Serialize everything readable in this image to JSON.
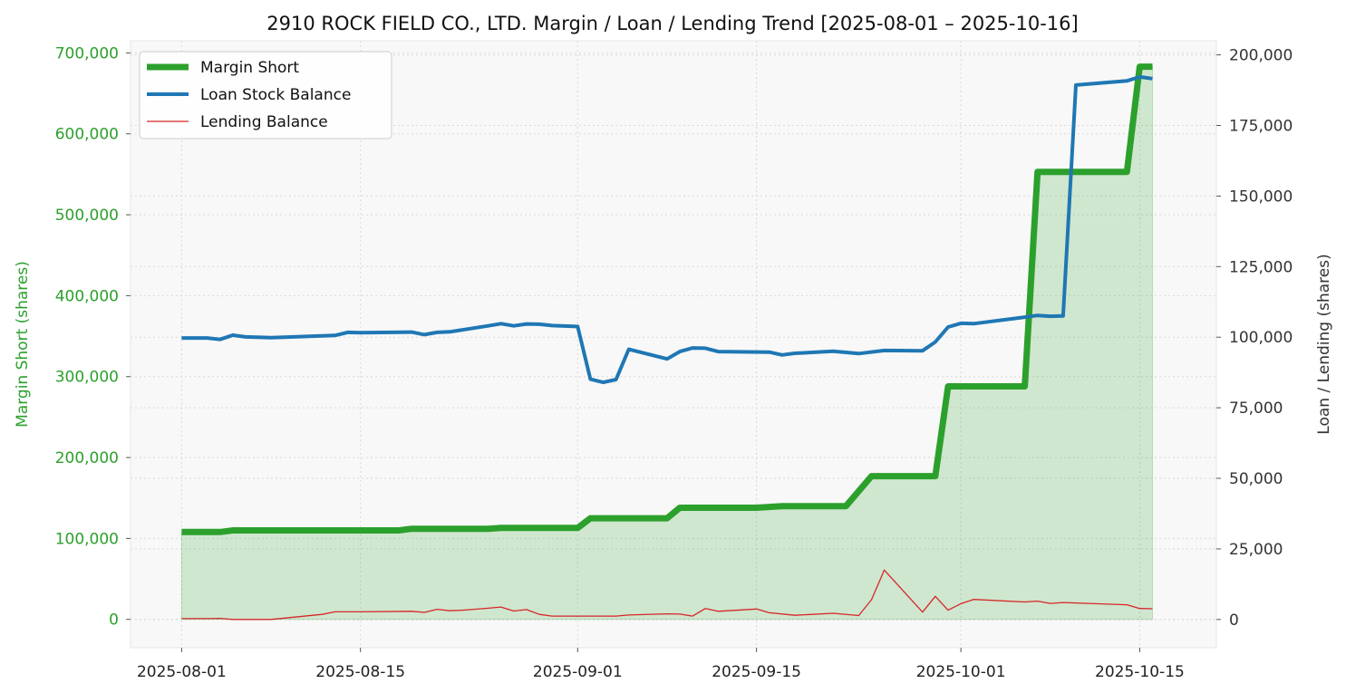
{
  "chart_data": {
    "type": "line",
    "title": "2910 ROCK FIELD CO., LTD. Margin / Loan / Lending Trend [2025-08-01 – 2025-10-16]",
    "ylabel_left": "Margin Short (shares)",
    "ylabel_right": "Loan / Lending (shares)",
    "xlabel": "",
    "grid": true,
    "legend_position": "top-left",
    "ylim_left": [
      -35000,
      715000
    ],
    "ylim_right": [
      -10000,
      205000
    ],
    "xlim": [
      "2025-07-28",
      "2025-10-21"
    ],
    "x_ticks": [
      "2025-08-01",
      "2025-08-15",
      "2025-09-01",
      "2025-09-15",
      "2025-10-01",
      "2025-10-15"
    ],
    "y_ticks_left": [
      0,
      100000,
      200000,
      300000,
      400000,
      500000,
      600000,
      700000
    ],
    "y_ticks_right": [
      0,
      25000,
      50000,
      75000,
      100000,
      125000,
      150000,
      175000,
      200000
    ],
    "series": [
      {
        "name": "Margin Short",
        "axis": "left",
        "color": "#2ca02c",
        "fill": true,
        "points": [
          [
            "2025-08-01",
            108000
          ],
          [
            "2025-08-04",
            108000
          ],
          [
            "2025-08-05",
            110000
          ],
          [
            "2025-08-08",
            110000
          ],
          [
            "2025-08-13",
            110000
          ],
          [
            "2025-08-18",
            110000
          ],
          [
            "2025-08-19",
            112000
          ],
          [
            "2025-08-25",
            112000
          ],
          [
            "2025-08-26",
            113000
          ],
          [
            "2025-08-29",
            113000
          ],
          [
            "2025-09-01",
            113000
          ],
          [
            "2025-09-02",
            125000
          ],
          [
            "2025-09-08",
            125000
          ],
          [
            "2025-09-09",
            138000
          ],
          [
            "2025-09-15",
            138000
          ],
          [
            "2025-09-17",
            140000
          ],
          [
            "2025-09-22",
            140000
          ],
          [
            "2025-09-24",
            177000
          ],
          [
            "2025-09-29",
            177000
          ],
          [
            "2025-09-30",
            288000
          ],
          [
            "2025-10-06",
            288000
          ],
          [
            "2025-10-07",
            553000
          ],
          [
            "2025-10-14",
            553000
          ],
          [
            "2025-10-15",
            683000
          ],
          [
            "2025-10-16",
            683000
          ]
        ]
      },
      {
        "name": "Loan Stock Balance",
        "axis": "right",
        "color": "#1f77b4",
        "points": [
          [
            "2025-08-01",
            99700
          ],
          [
            "2025-08-03",
            99700
          ],
          [
            "2025-08-04",
            99200
          ],
          [
            "2025-08-05",
            100700
          ],
          [
            "2025-08-06",
            100100
          ],
          [
            "2025-08-08",
            99800
          ],
          [
            "2025-08-12",
            100500
          ],
          [
            "2025-08-13",
            100600
          ],
          [
            "2025-08-14",
            101700
          ],
          [
            "2025-08-15",
            101600
          ],
          [
            "2025-08-19",
            101800
          ],
          [
            "2025-08-20",
            100900
          ],
          [
            "2025-08-21",
            101700
          ],
          [
            "2025-08-22",
            101900
          ],
          [
            "2025-08-25",
            104000
          ],
          [
            "2025-08-26",
            104800
          ],
          [
            "2025-08-27",
            104000
          ],
          [
            "2025-08-28",
            104700
          ],
          [
            "2025-08-29",
            104600
          ],
          [
            "2025-08-30",
            104100
          ],
          [
            "2025-09-01",
            103800
          ],
          [
            "2025-09-02",
            85100
          ],
          [
            "2025-09-03",
            84000
          ],
          [
            "2025-09-04",
            85000
          ],
          [
            "2025-09-05",
            95700
          ],
          [
            "2025-09-08",
            92300
          ],
          [
            "2025-09-09",
            94900
          ],
          [
            "2025-09-10",
            96200
          ],
          [
            "2025-09-11",
            96100
          ],
          [
            "2025-09-12",
            94900
          ],
          [
            "2025-09-16",
            94700
          ],
          [
            "2025-09-17",
            93700
          ],
          [
            "2025-09-18",
            94300
          ],
          [
            "2025-09-21",
            95000
          ],
          [
            "2025-09-23",
            94200
          ],
          [
            "2025-09-25",
            95300
          ],
          [
            "2025-09-28",
            95200
          ],
          [
            "2025-09-29",
            98300
          ],
          [
            "2025-09-30",
            103600
          ],
          [
            "2025-10-01",
            104900
          ],
          [
            "2025-10-02",
            104800
          ],
          [
            "2025-10-06",
            107100
          ],
          [
            "2025-10-07",
            107700
          ],
          [
            "2025-10-08",
            107400
          ],
          [
            "2025-10-09",
            107500
          ],
          [
            "2025-10-10",
            189300
          ],
          [
            "2025-10-14",
            190800
          ],
          [
            "2025-10-15",
            192200
          ],
          [
            "2025-10-16",
            191600
          ]
        ]
      },
      {
        "name": "Lending Balance",
        "axis": "right",
        "color": "#d62728",
        "points": [
          [
            "2025-08-01",
            300
          ],
          [
            "2025-08-03",
            300
          ],
          [
            "2025-08-04",
            400
          ],
          [
            "2025-08-05",
            0
          ],
          [
            "2025-08-08",
            0
          ],
          [
            "2025-08-12",
            1800
          ],
          [
            "2025-08-13",
            2700
          ],
          [
            "2025-08-15",
            2700
          ],
          [
            "2025-08-19",
            2900
          ],
          [
            "2025-08-20",
            2500
          ],
          [
            "2025-08-21",
            3600
          ],
          [
            "2025-08-22",
            3100
          ],
          [
            "2025-08-23",
            3300
          ],
          [
            "2025-08-25",
            4000
          ],
          [
            "2025-08-26",
            4400
          ],
          [
            "2025-08-27",
            3000
          ],
          [
            "2025-08-28",
            3500
          ],
          [
            "2025-08-29",
            1800
          ],
          [
            "2025-08-30",
            1200
          ],
          [
            "2025-09-01",
            1200
          ],
          [
            "2025-09-04",
            1200
          ],
          [
            "2025-09-05",
            1600
          ],
          [
            "2025-09-08",
            2000
          ],
          [
            "2025-09-09",
            1900
          ],
          [
            "2025-09-10",
            1200
          ],
          [
            "2025-09-11",
            3900
          ],
          [
            "2025-09-12",
            2900
          ],
          [
            "2025-09-15",
            3700
          ],
          [
            "2025-09-16",
            2400
          ],
          [
            "2025-09-18",
            1500
          ],
          [
            "2025-09-21",
            2200
          ],
          [
            "2025-09-23",
            1400
          ],
          [
            "2025-09-24",
            7000
          ],
          [
            "2025-09-25",
            17500
          ],
          [
            "2025-09-28",
            2600
          ],
          [
            "2025-09-29",
            8200
          ],
          [
            "2025-09-30",
            3300
          ],
          [
            "2025-10-01",
            5600
          ],
          [
            "2025-10-02",
            7100
          ],
          [
            "2025-10-06",
            6200
          ],
          [
            "2025-10-07",
            6500
          ],
          [
            "2025-10-08",
            5700
          ],
          [
            "2025-10-09",
            6000
          ],
          [
            "2025-10-14",
            5200
          ],
          [
            "2025-10-15",
            3900
          ],
          [
            "2025-10-16",
            3800
          ]
        ]
      }
    ]
  }
}
